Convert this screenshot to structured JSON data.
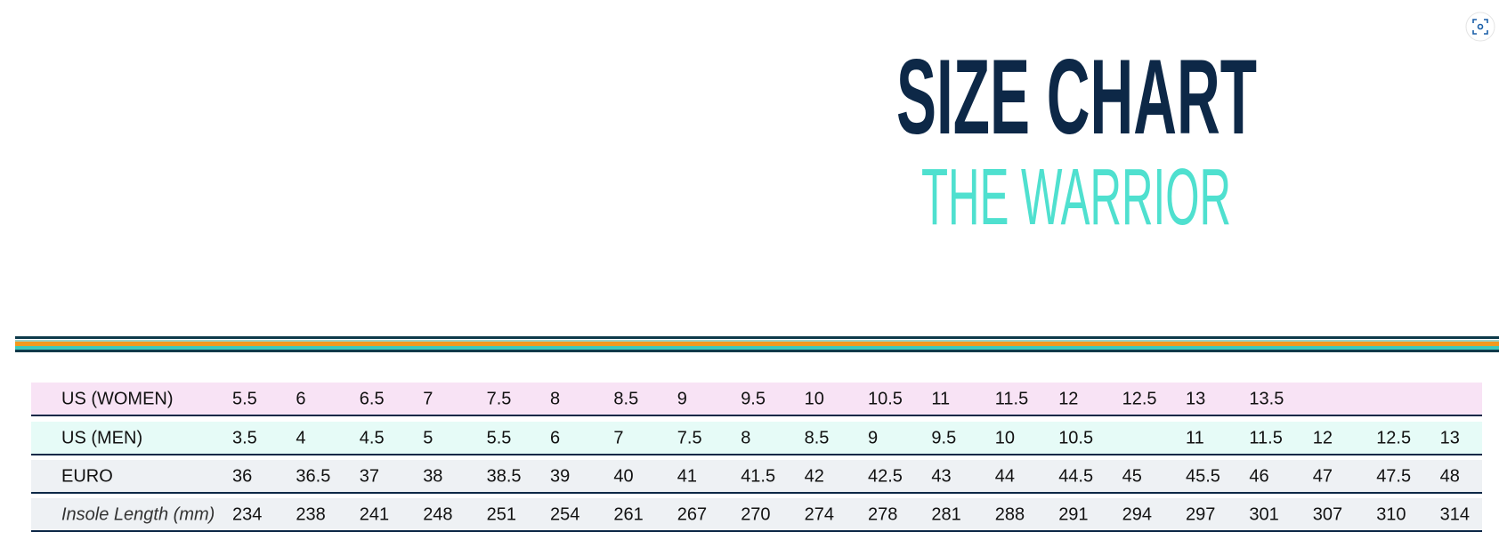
{
  "header": {
    "title": "SIZE CHART",
    "subtitle": "THE WARRIOR"
  },
  "table": {
    "rows": [
      {
        "label": "US (WOMEN)",
        "cells": [
          "5.5",
          "6",
          "6.5",
          "7",
          "7.5",
          "8",
          "8.5",
          "9",
          "9.5",
          "10",
          "10.5",
          "11",
          "11.5",
          "12",
          "12.5",
          "13",
          "13.5",
          null,
          null,
          null
        ]
      },
      {
        "label": "US (MEN)",
        "cells": [
          "3.5",
          "4",
          "4.5",
          "5",
          "5.5",
          "6",
          "7",
          "7.5",
          "8",
          "8.5",
          "9",
          "9.5",
          "10",
          "10.5",
          null,
          "11",
          "11.5",
          "12",
          "12.5",
          "13"
        ]
      },
      {
        "label": "EURO",
        "cells": [
          "36",
          "36.5",
          "37",
          "38",
          "38.5",
          "39",
          "40",
          "41",
          "41.5",
          "42",
          "42.5",
          "43",
          "44",
          "44.5",
          "45",
          "45.5",
          "46",
          "47",
          "47.5",
          "48"
        ]
      },
      {
        "label": "Insole Length (mm)",
        "cells": [
          "234",
          "238",
          "241",
          "248",
          "251",
          "254",
          "261",
          "267",
          "270",
          "274",
          "278",
          "281",
          "288",
          "291",
          "294",
          "297",
          "301",
          "307",
          "310",
          "314"
        ]
      }
    ]
  }
}
